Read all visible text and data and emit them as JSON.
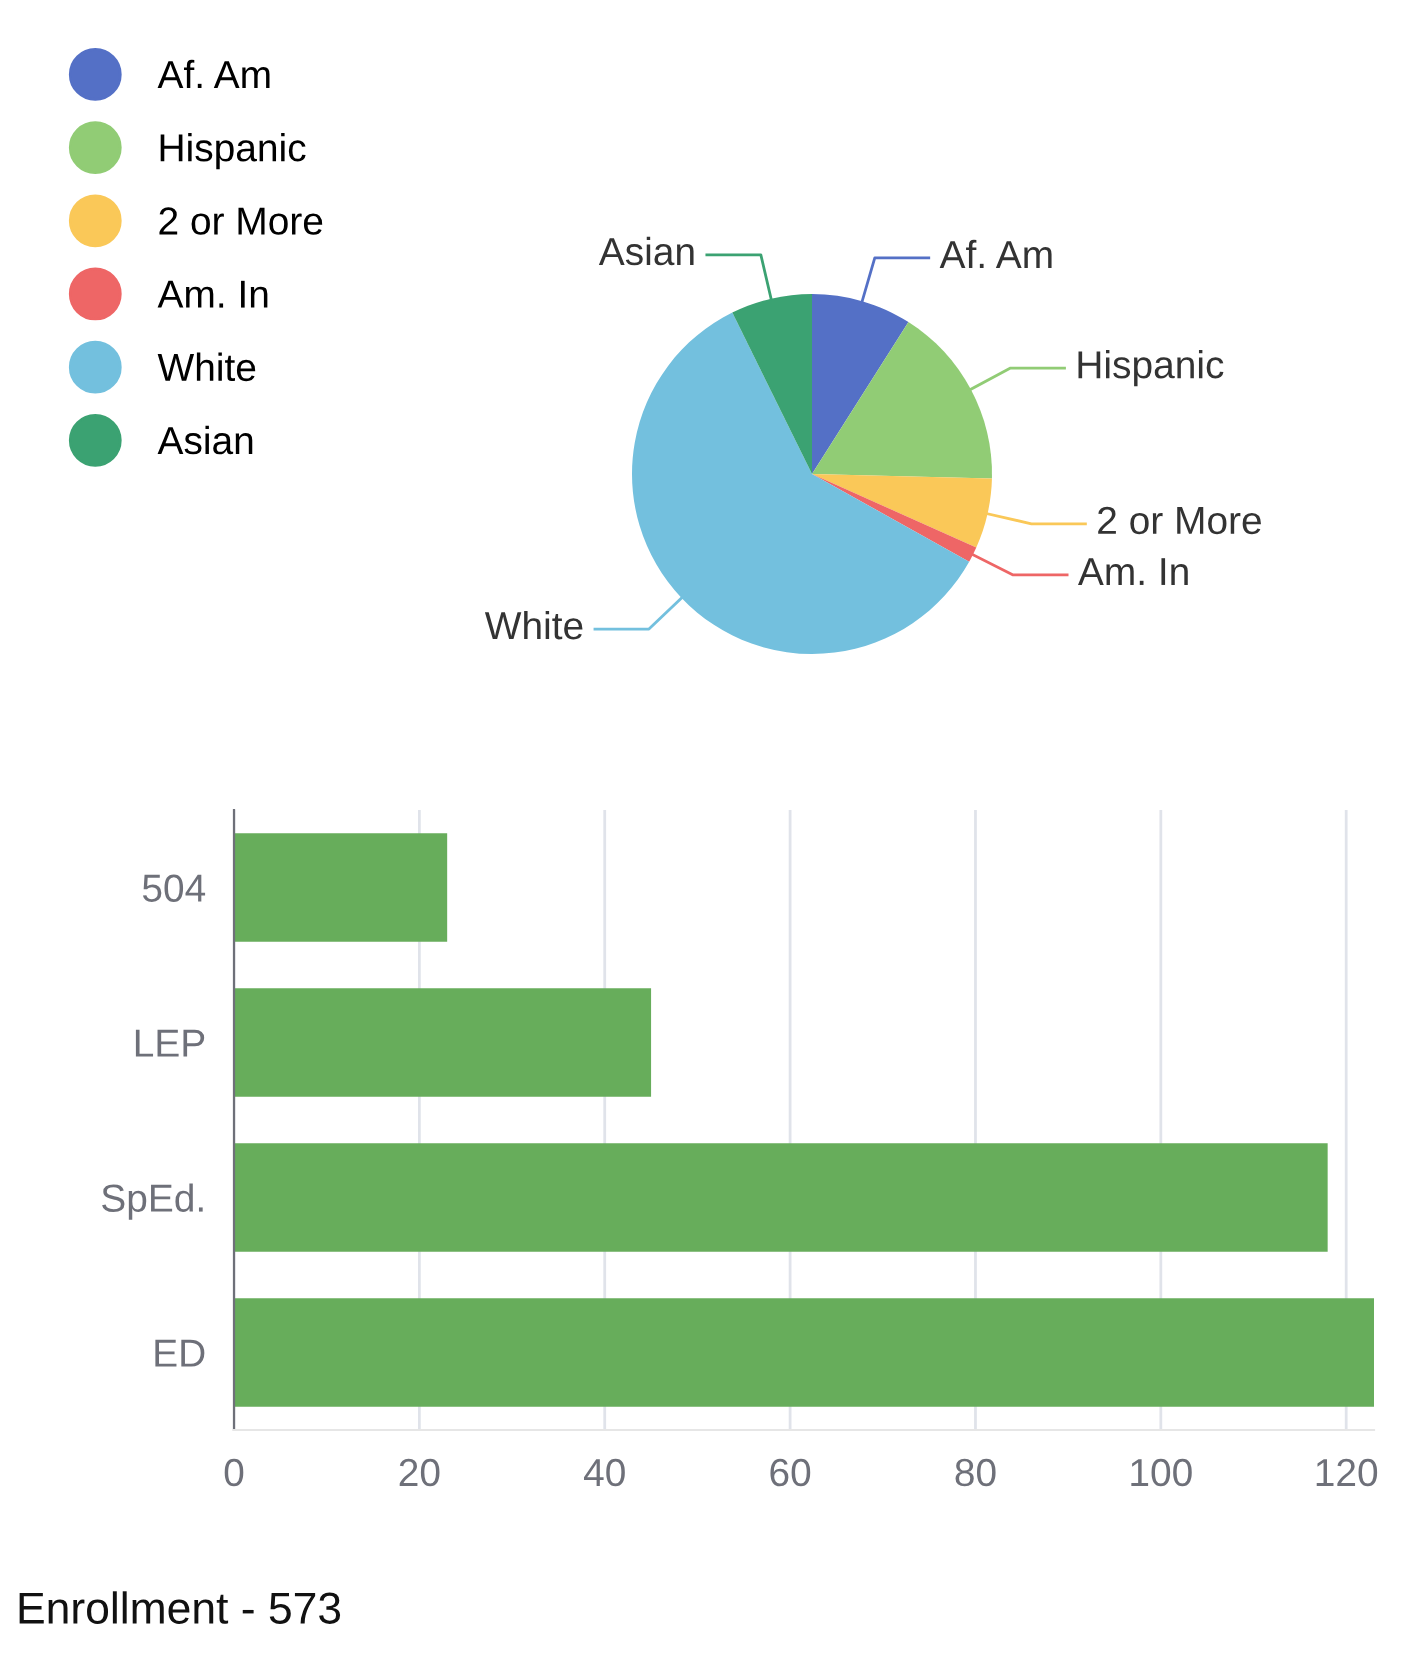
{
  "chart_data": [
    {
      "type": "pie",
      "categories": [
        "Af. Am",
        "Hispanic",
        "2 or More",
        "Am. In",
        "White",
        "Asian"
      ],
      "values": [
        9.0,
        16.4,
        6.3,
        1.4,
        59.6,
        7.3
      ],
      "colors": [
        "#5470c6",
        "#91cc75",
        "#fac858",
        "#ee6666",
        "#73c0de",
        "#3ba272"
      ],
      "legend": "top left"
    },
    {
      "type": "bar",
      "orientation": "horizontal",
      "categories": [
        "504",
        "LEP",
        "SpEd.",
        "ED"
      ],
      "values": [
        23,
        45,
        118,
        123
      ],
      "color": "#67ad5b",
      "xlim": [
        0,
        123
      ],
      "xticks": [
        0,
        20,
        40,
        60,
        80,
        100,
        120
      ],
      "grid": "x",
      "annotations": [
        "Enrollment - 573"
      ]
    }
  ]
}
